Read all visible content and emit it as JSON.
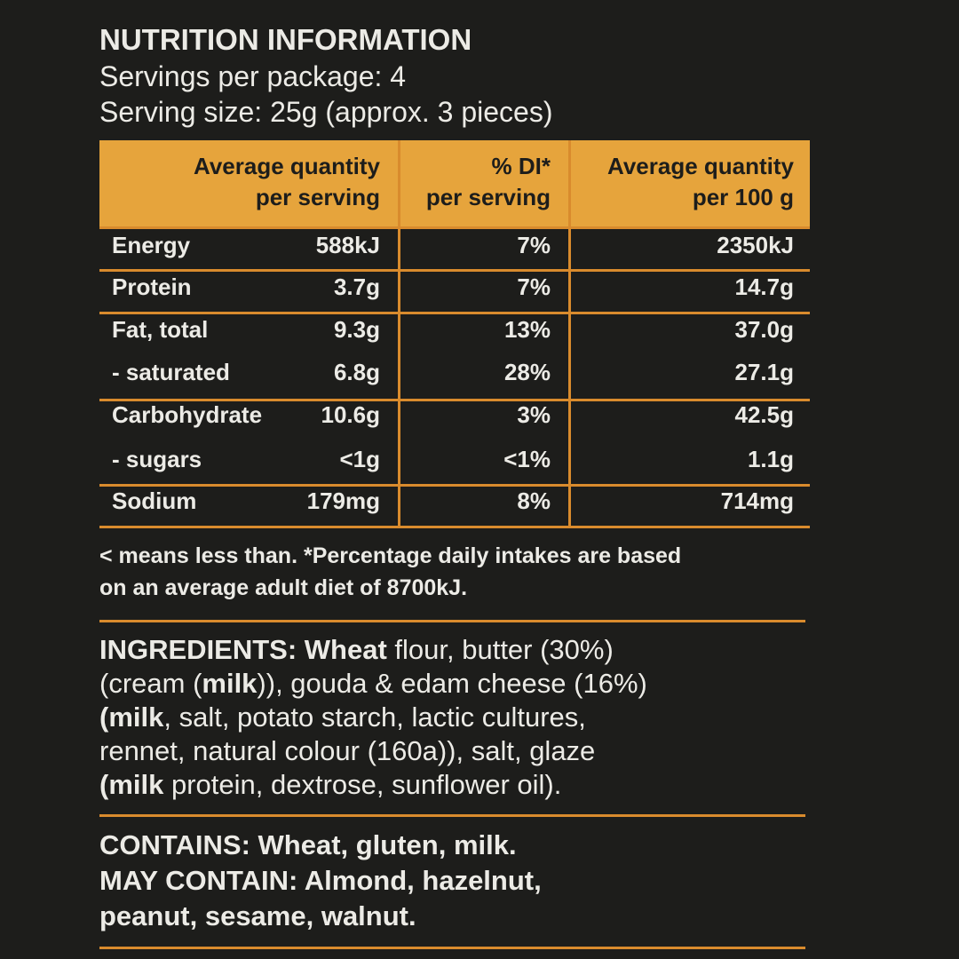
{
  "title": "NUTRITION INFORMATION",
  "servings": "Servings per package: 4",
  "serving_size": "Serving size: 25g (approx. 3 pieces)",
  "table": {
    "header": [
      [
        "Average quantity",
        "per serving"
      ],
      [
        "% DI*",
        "per serving"
      ],
      [
        "Average quantity",
        "per 100 g"
      ]
    ],
    "rows": [
      [
        "Energy",
        "588kJ",
        "7%",
        "2350kJ"
      ],
      [
        "Protein",
        "3.7g",
        "7%",
        "14.7g"
      ],
      [
        "Fat, total",
        "9.3g",
        "13%",
        "37.0g"
      ],
      [
        "- saturated",
        "6.8g",
        "28%",
        "27.1g"
      ],
      [
        "Carbohydrate",
        "10.6g",
        "3%",
        "42.5g"
      ],
      [
        "- sugars",
        "<1g",
        "<1%",
        "1.1g"
      ],
      [
        "Sodium",
        "179mg",
        "8%",
        "714mg"
      ]
    ]
  },
  "footnote": [
    "< means less than. *Percentage daily intakes are based",
    "on an average adult diet of 8700kJ."
  ],
  "ingredients": [
    [
      {
        "text": "INGREDIENTS: Wheat",
        "bold": true
      },
      {
        "text": " flour, butter (30%)"
      }
    ],
    [
      {
        "text": "(cream ("
      },
      {
        "text": "milk",
        "bold": true
      },
      {
        "text": ")), gouda & edam cheese (16%)"
      }
    ],
    [
      {
        "text": "(milk",
        "bold": true
      },
      {
        "text": ", salt, potato starch, lactic cultures,"
      }
    ],
    [
      {
        "text": "rennet, natural colour (160a)), salt, glaze"
      }
    ],
    [
      {
        "text": "(milk",
        "bold": true
      },
      {
        "text": " protein, dextrose, sunflower oil)."
      }
    ]
  ],
  "allergens": [
    "CONTAINS: Wheat, gluten, milk.",
    "MAY CONTAIN: Almond, hazelnut,",
    "peanut, sesame, walnut."
  ]
}
